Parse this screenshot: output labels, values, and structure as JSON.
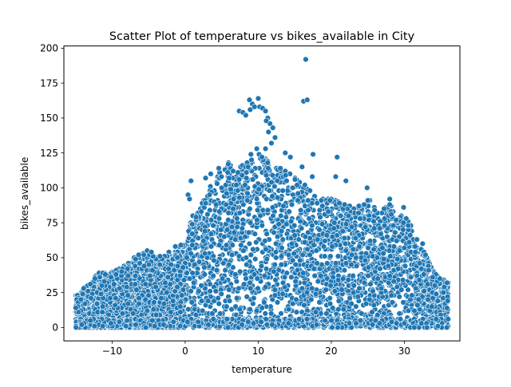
{
  "chart_data": {
    "type": "scatter",
    "title": "Scatter Plot of temperature vs bikes_available in City",
    "xlabel": "temperature",
    "ylabel": "bikes_available",
    "xlim": [
      -16.6,
      37.6
    ],
    "ylim": [
      -9.6,
      201.6
    ],
    "xticks": [
      {
        "value": -10,
        "label": "−10"
      },
      {
        "value": 0,
        "label": "0"
      },
      {
        "value": 10,
        "label": "10"
      },
      {
        "value": 20,
        "label": "20"
      },
      {
        "value": 30,
        "label": "30"
      }
    ],
    "yticks": [
      {
        "value": 0,
        "label": "0"
      },
      {
        "value": 25,
        "label": "25"
      },
      {
        "value": 50,
        "label": "50"
      },
      {
        "value": 75,
        "label": "75"
      },
      {
        "value": 100,
        "label": "100"
      },
      {
        "value": 125,
        "label": "125"
      },
      {
        "value": 150,
        "label": "150"
      },
      {
        "value": 175,
        "label": "175"
      },
      {
        "value": 200,
        "label": "200"
      }
    ],
    "grid": false,
    "marker_color": "#1f77b4",
    "marker_edge_color": "#ffffff",
    "envelope": [
      [
        -15,
        23
      ],
      [
        -13.5,
        30
      ],
      [
        -12,
        39
      ],
      [
        -10,
        41
      ],
      [
        -8,
        45
      ],
      [
        -6.5,
        52
      ],
      [
        -5,
        55
      ],
      [
        -3,
        50
      ],
      [
        -1.5,
        58
      ],
      [
        0,
        60
      ],
      [
        1,
        80
      ],
      [
        2,
        86
      ],
      [
        3,
        95
      ],
      [
        4,
        108
      ],
      [
        5,
        113
      ],
      [
        6,
        118
      ],
      [
        7,
        112
      ],
      [
        8,
        118
      ],
      [
        9,
        120
      ],
      [
        10,
        126
      ],
      [
        11,
        125
      ],
      [
        12,
        118
      ],
      [
        13,
        116
      ],
      [
        14,
        112
      ],
      [
        15,
        108
      ],
      [
        16,
        104
      ],
      [
        17,
        100
      ],
      [
        18,
        96
      ],
      [
        19,
        93
      ],
      [
        20,
        92
      ],
      [
        21,
        90
      ],
      [
        22,
        88
      ],
      [
        23,
        86
      ],
      [
        24,
        88
      ],
      [
        25,
        92
      ],
      [
        26,
        87
      ],
      [
        27,
        85
      ],
      [
        28,
        90
      ],
      [
        29,
        78
      ],
      [
        30,
        82
      ],
      [
        31,
        72
      ],
      [
        32,
        60
      ],
      [
        33,
        52
      ],
      [
        34,
        40
      ],
      [
        35,
        35
      ],
      [
        36,
        33
      ]
    ],
    "outliers": [
      {
        "x": 16.5,
        "y": 192
      },
      {
        "x": 16.2,
        "y": 162
      },
      {
        "x": 16.7,
        "y": 163
      },
      {
        "x": 8.8,
        "y": 163
      },
      {
        "x": 9.2,
        "y": 160
      },
      {
        "x": 10.0,
        "y": 164
      },
      {
        "x": 7.4,
        "y": 155
      },
      {
        "x": 7.9,
        "y": 154
      },
      {
        "x": 8.3,
        "y": 152
      },
      {
        "x": 8.9,
        "y": 156
      },
      {
        "x": 9.5,
        "y": 158
      },
      {
        "x": 10.2,
        "y": 158
      },
      {
        "x": 10.6,
        "y": 157
      },
      {
        "x": 11.0,
        "y": 155
      },
      {
        "x": 11.3,
        "y": 150
      },
      {
        "x": 11.6,
        "y": 146
      },
      {
        "x": 11.1,
        "y": 148
      },
      {
        "x": 12.0,
        "y": 143
      },
      {
        "x": 11.4,
        "y": 140
      },
      {
        "x": 12.3,
        "y": 136
      },
      {
        "x": 11.8,
        "y": 132
      },
      {
        "x": 11.0,
        "y": 128
      },
      {
        "x": 9.8,
        "y": 128
      },
      {
        "x": 9.0,
        "y": 124
      },
      {
        "x": 10.5,
        "y": 122
      },
      {
        "x": 13.7,
        "y": 125
      },
      {
        "x": 14.4,
        "y": 122
      },
      {
        "x": 17.5,
        "y": 124
      },
      {
        "x": 20.8,
        "y": 122
      },
      {
        "x": 16.0,
        "y": 115
      },
      {
        "x": 17.4,
        "y": 108
      },
      {
        "x": 20.6,
        "y": 108
      },
      {
        "x": 22.0,
        "y": 105
      },
      {
        "x": 0.4,
        "y": 95
      },
      {
        "x": 0.6,
        "y": 92
      },
      {
        "x": 0.8,
        "y": 105
      },
      {
        "x": 2.8,
        "y": 107
      },
      {
        "x": 3.5,
        "y": 110
      },
      {
        "x": 4.6,
        "y": 114
      },
      {
        "x": 5.9,
        "y": 117
      },
      {
        "x": 24.9,
        "y": 100
      },
      {
        "x": 28.0,
        "y": 92
      },
      {
        "x": 29.9,
        "y": 86
      },
      {
        "x": 32.5,
        "y": 60
      }
    ],
    "columns_x": [
      -14.8,
      -14.3,
      -13.7,
      -13.2,
      -12.6,
      -12.1,
      -11.5,
      -11.0,
      -10.4,
      -9.8,
      -9.2,
      -8.7,
      -8.1,
      -7.6,
      -7.0,
      -6.4,
      -5.9,
      -5.3,
      -4.7,
      -4.2,
      -3.6,
      -3.0,
      -2.5,
      -1.9,
      -1.3,
      -0.8,
      -0.2
    ]
  }
}
